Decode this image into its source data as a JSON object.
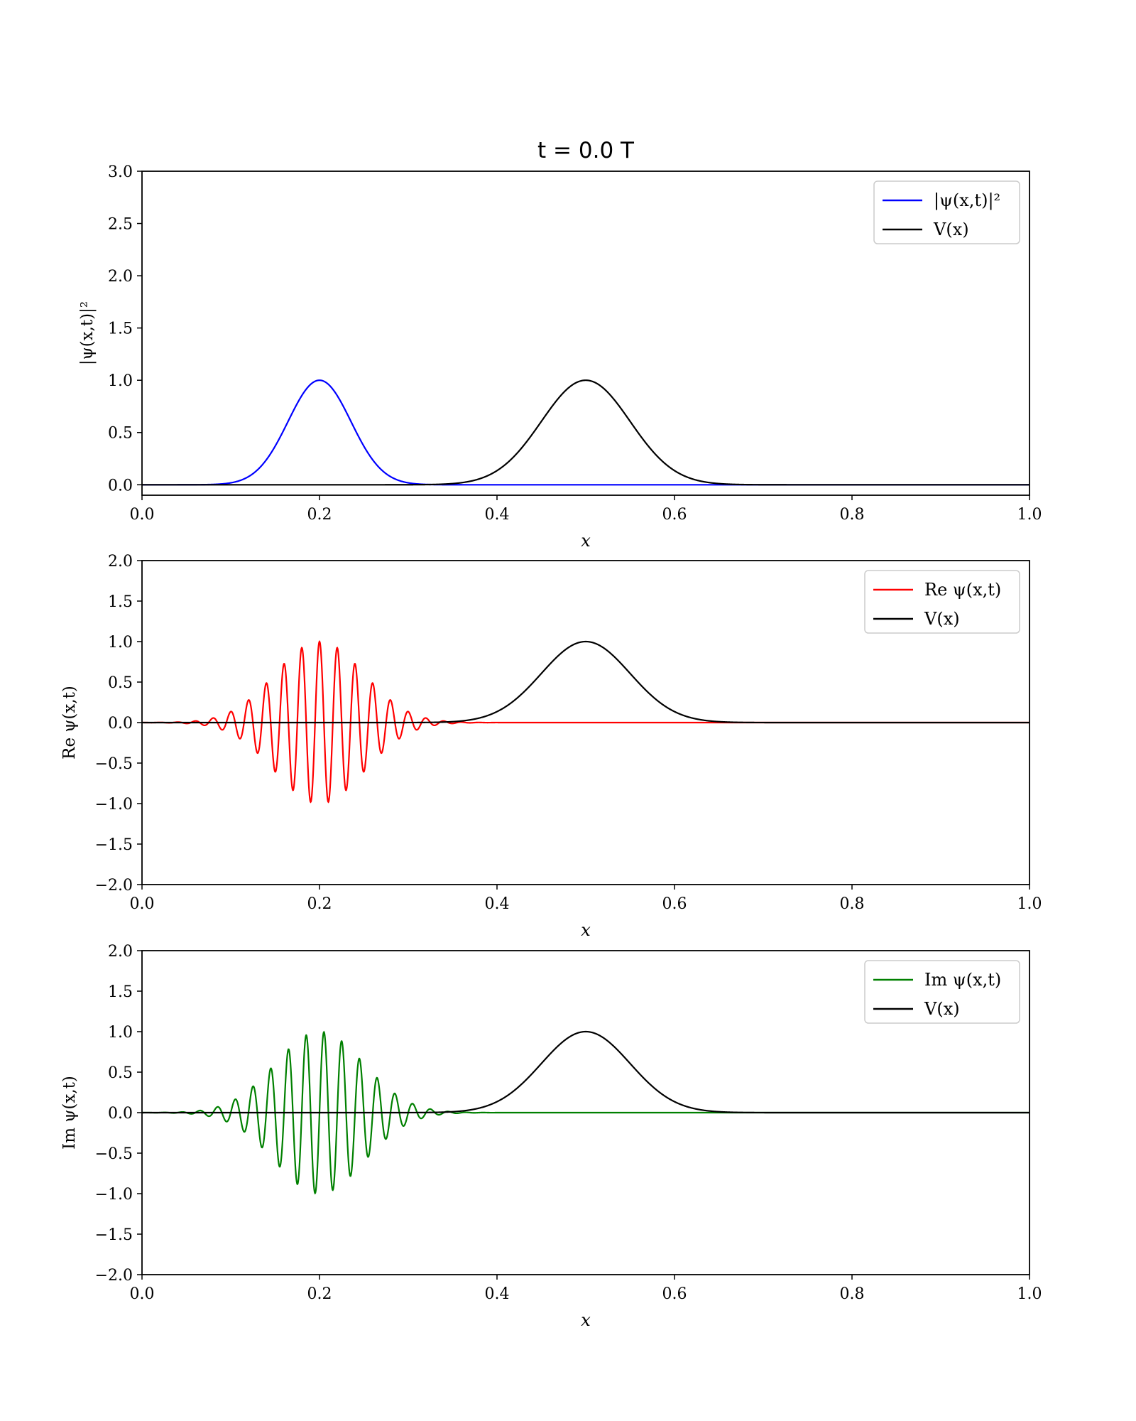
{
  "figure_title": "t = 0.0 T",
  "chart_data": [
    {
      "type": "line",
      "xlabel": "x",
      "ylabel": "|ψ(x,t)|²",
      "xlim": [
        0.0,
        1.0
      ],
      "ylim": [
        -0.1,
        3.0
      ],
      "xticks": [
        "0.0",
        "0.2",
        "0.4",
        "0.6",
        "0.8",
        "1.0"
      ],
      "yticks": [
        "0.0",
        "0.5",
        "1.0",
        "1.5",
        "2.0",
        "2.5",
        "3.0"
      ],
      "legend_position": "top-right",
      "series": [
        {
          "name": "|ψ(x,t)|²",
          "color": "#0000ff",
          "shape": "gaussian",
          "center": 0.2,
          "amplitude": 1.0,
          "sigma": 0.0354
        },
        {
          "name": "V(x)",
          "color": "#000000",
          "shape": "gaussian",
          "center": 0.5,
          "amplitude": 1.0,
          "sigma": 0.05
        }
      ]
    },
    {
      "type": "line",
      "xlabel": "x",
      "ylabel": "Re ψ(x,t)",
      "xlim": [
        0.0,
        1.0
      ],
      "ylim": [
        -2.0,
        2.0
      ],
      "xticks": [
        "0.0",
        "0.2",
        "0.4",
        "0.6",
        "0.8",
        "1.0"
      ],
      "yticks": [
        "−2.0",
        "−1.5",
        "−1.0",
        "−0.5",
        "0.0",
        "0.5",
        "1.0",
        "1.5",
        "2.0"
      ],
      "legend_position": "top-right",
      "series": [
        {
          "name": "Re ψ(x,t)",
          "color": "#ff0000",
          "shape": "wavepacket-cos",
          "center": 0.2,
          "amplitude": 1.0,
          "sigma": 0.05,
          "wavenumber": 314.16
        },
        {
          "name": "V(x)",
          "color": "#000000",
          "shape": "gaussian",
          "center": 0.5,
          "amplitude": 1.0,
          "sigma": 0.05
        }
      ]
    },
    {
      "type": "line",
      "xlabel": "x",
      "ylabel": "Im ψ(x,t)",
      "xlim": [
        0.0,
        1.0
      ],
      "ylim": [
        -2.0,
        2.0
      ],
      "xticks": [
        "0.0",
        "0.2",
        "0.4",
        "0.6",
        "0.8",
        "1.0"
      ],
      "yticks": [
        "−2.0",
        "−1.5",
        "−1.0",
        "−0.5",
        "0.0",
        "0.5",
        "1.0",
        "1.5",
        "2.0"
      ],
      "legend_position": "top-right",
      "series": [
        {
          "name": "Im ψ(x,t)",
          "color": "#008000",
          "shape": "wavepacket-sin",
          "center": 0.2,
          "amplitude": 1.0,
          "sigma": 0.05,
          "wavenumber": 314.16
        },
        {
          "name": "V(x)",
          "color": "#000000",
          "shape": "gaussian",
          "center": 0.5,
          "amplitude": 1.0,
          "sigma": 0.05
        }
      ]
    }
  ]
}
